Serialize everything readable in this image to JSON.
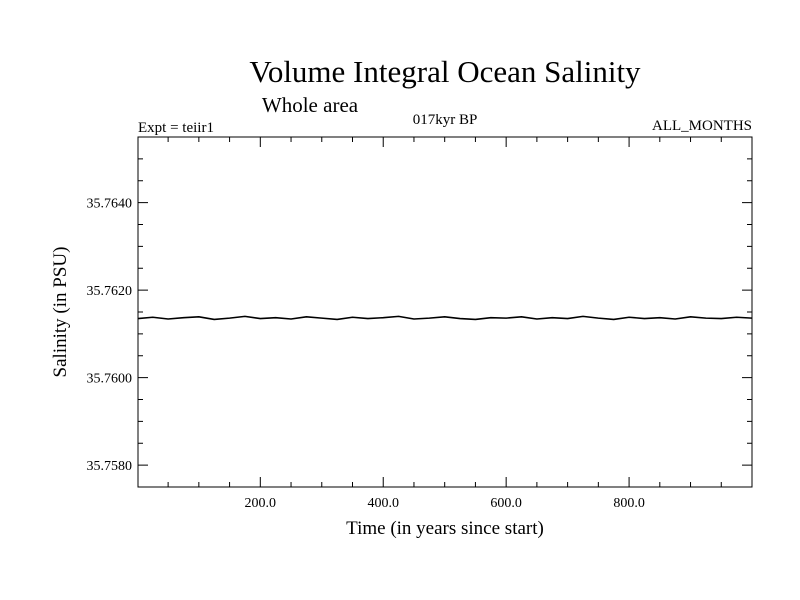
{
  "chart_data": {
    "type": "line",
    "title": "Volume Integral Ocean Salinity",
    "subtitle": "Whole area",
    "annotations": {
      "left": "Expt = teiir1",
      "center": "017kyr BP",
      "right": "ALL_MONTHS"
    },
    "xlabel": "Time (in years since start)",
    "ylabel": "Salinity (in PSU)",
    "xlim": [
      1,
      1000
    ],
    "ylim": [
      35.7575,
      35.7655
    ],
    "x_ticks": [
      200,
      400,
      600,
      800
    ],
    "x_tick_labels": [
      "200.0",
      "400.0",
      "600.0",
      "800.0"
    ],
    "y_ticks": [
      35.758,
      35.76,
      35.762,
      35.764
    ],
    "y_tick_labels": [
      "35.7580",
      "35.7600",
      "35.7620",
      "35.7640"
    ],
    "grid": false,
    "series": [
      {
        "x": [
          1,
          25,
          50,
          75,
          100,
          125,
          150,
          175,
          200,
          225,
          250,
          275,
          300,
          325,
          350,
          375,
          400,
          425,
          450,
          475,
          500,
          525,
          550,
          575,
          600,
          625,
          650,
          675,
          700,
          725,
          750,
          775,
          800,
          825,
          850,
          875,
          900,
          925,
          950,
          975,
          1000
        ],
        "values": [
          35.76135,
          35.76138,
          35.76134,
          35.76137,
          35.76139,
          35.76133,
          35.76136,
          35.7614,
          35.76135,
          35.76137,
          35.76134,
          35.76139,
          35.76136,
          35.76133,
          35.76138,
          35.76135,
          35.76137,
          35.7614,
          35.76134,
          35.76136,
          35.76139,
          35.76135,
          35.76133,
          35.76137,
          35.76136,
          35.76139,
          35.76134,
          35.76137,
          35.76135,
          35.7614,
          35.76136,
          35.76133,
          35.76138,
          35.76135,
          35.76137,
          35.76134,
          35.76139,
          35.76136,
          35.76135,
          35.76138,
          35.76136
        ]
      }
    ]
  }
}
